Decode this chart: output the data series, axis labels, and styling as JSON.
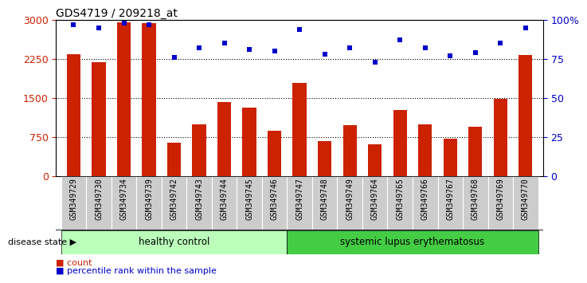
{
  "title": "GDS4719 / 209218_at",
  "samples": [
    "GSM349729",
    "GSM349730",
    "GSM349734",
    "GSM349739",
    "GSM349742",
    "GSM349743",
    "GSM349744",
    "GSM349745",
    "GSM349746",
    "GSM349747",
    "GSM349748",
    "GSM349749",
    "GSM349764",
    "GSM349765",
    "GSM349766",
    "GSM349767",
    "GSM349768",
    "GSM349769",
    "GSM349770"
  ],
  "counts": [
    2350,
    2190,
    2960,
    2940,
    650,
    1000,
    1420,
    1320,
    870,
    1800,
    680,
    980,
    620,
    1270,
    1000,
    720,
    950,
    1490,
    2330
  ],
  "percentiles": [
    97,
    95,
    98,
    97,
    76,
    82,
    85,
    81,
    80,
    94,
    78,
    82,
    73,
    87,
    82,
    77,
    79,
    85,
    95
  ],
  "healthy_count": 9,
  "sle_count": 10,
  "bar_color": "#cc2200",
  "dot_color": "#0000cc",
  "left_ylim": [
    0,
    3000
  ],
  "right_ylim": [
    0,
    100
  ],
  "left_yticks": [
    0,
    750,
    1500,
    2250,
    3000
  ],
  "right_yticks": [
    0,
    25,
    50,
    75,
    100
  ],
  "right_yticklabels": [
    "0",
    "25",
    "50",
    "75",
    "100%"
  ],
  "healthy_color": "#bbffbb",
  "sle_color": "#44cc44",
  "xtick_bg": "#cccccc",
  "legend_count_label": "count",
  "legend_pct_label": "percentile rank within the sample",
  "disease_state_label": "disease state",
  "healthy_label": "healthy control",
  "sle_label": "systemic lupus erythematosus",
  "grid_color": "black",
  "grid_linestyle": "dotted",
  "grid_linewidth": 0.8
}
